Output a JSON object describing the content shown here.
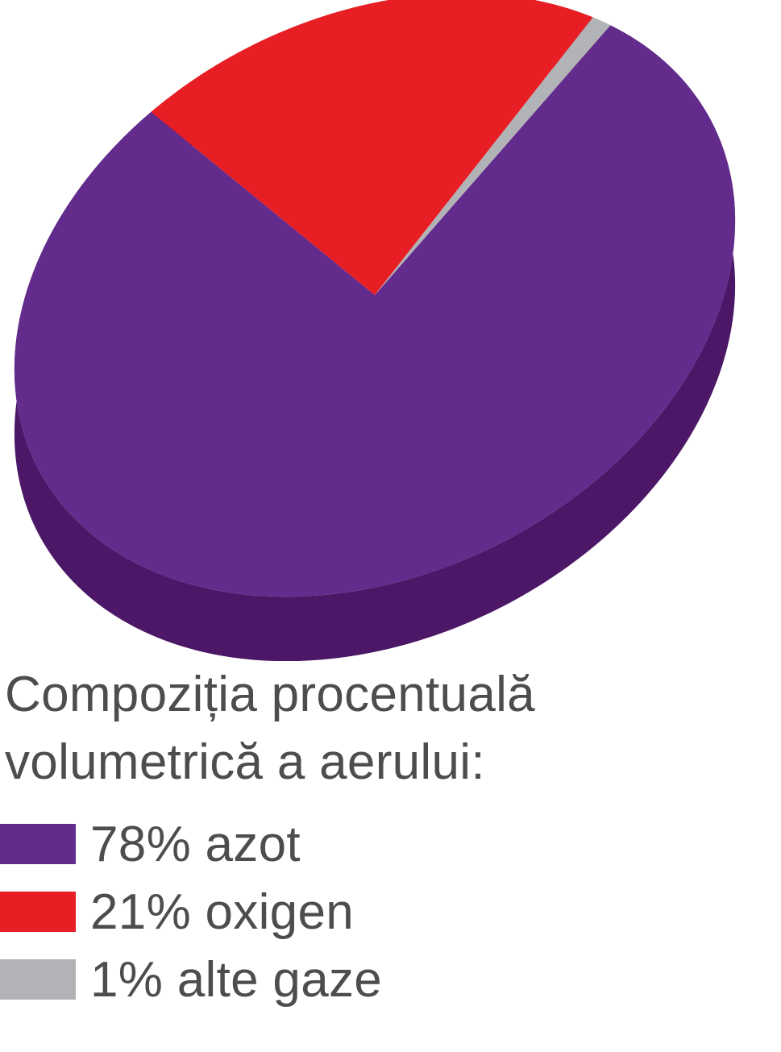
{
  "chart_data": {
    "type": "pie",
    "title_lines": [
      "Compoziția procentuală",
      "volumetrică a aerului:"
    ],
    "slices": [
      {
        "label": "78% azot",
        "value": 78,
        "color": "#622b8c",
        "side_color": "#4b1766"
      },
      {
        "label": "21% oxigen",
        "value": 21,
        "color": "#e81e25",
        "side_color": "#ab1116"
      },
      {
        "label": "1% alte gaze",
        "value": 1,
        "color": "#b1b3b6",
        "side_color": "#8e9093"
      }
    ],
    "style": "3d-tilted",
    "legend_position": "bottom-left"
  }
}
